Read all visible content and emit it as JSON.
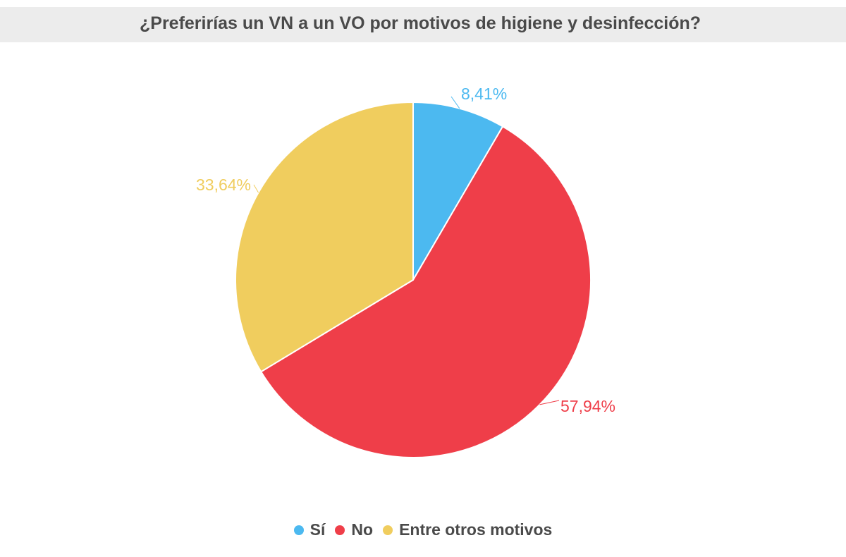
{
  "colors": {
    "title_bar_bg": "#ececec",
    "text": "#4a4a4a"
  },
  "chart_data": {
    "type": "pie",
    "title": "¿Preferirías un VN a un VO por motivos de higiene y desinfección?",
    "slices": [
      {
        "label": "Sí",
        "value": 8.41,
        "display": "8,41%",
        "color": "#4cb9f0"
      },
      {
        "label": "No",
        "value": 57.94,
        "display": "57,94%",
        "color": "#ef3e49"
      },
      {
        "label": "Entre otros motivos",
        "value": 33.64,
        "display": "33,64%",
        "color": "#f0cd5e"
      }
    ],
    "start_angle_deg": 0,
    "direction": "clockwise",
    "legend_position": "bottom"
  }
}
